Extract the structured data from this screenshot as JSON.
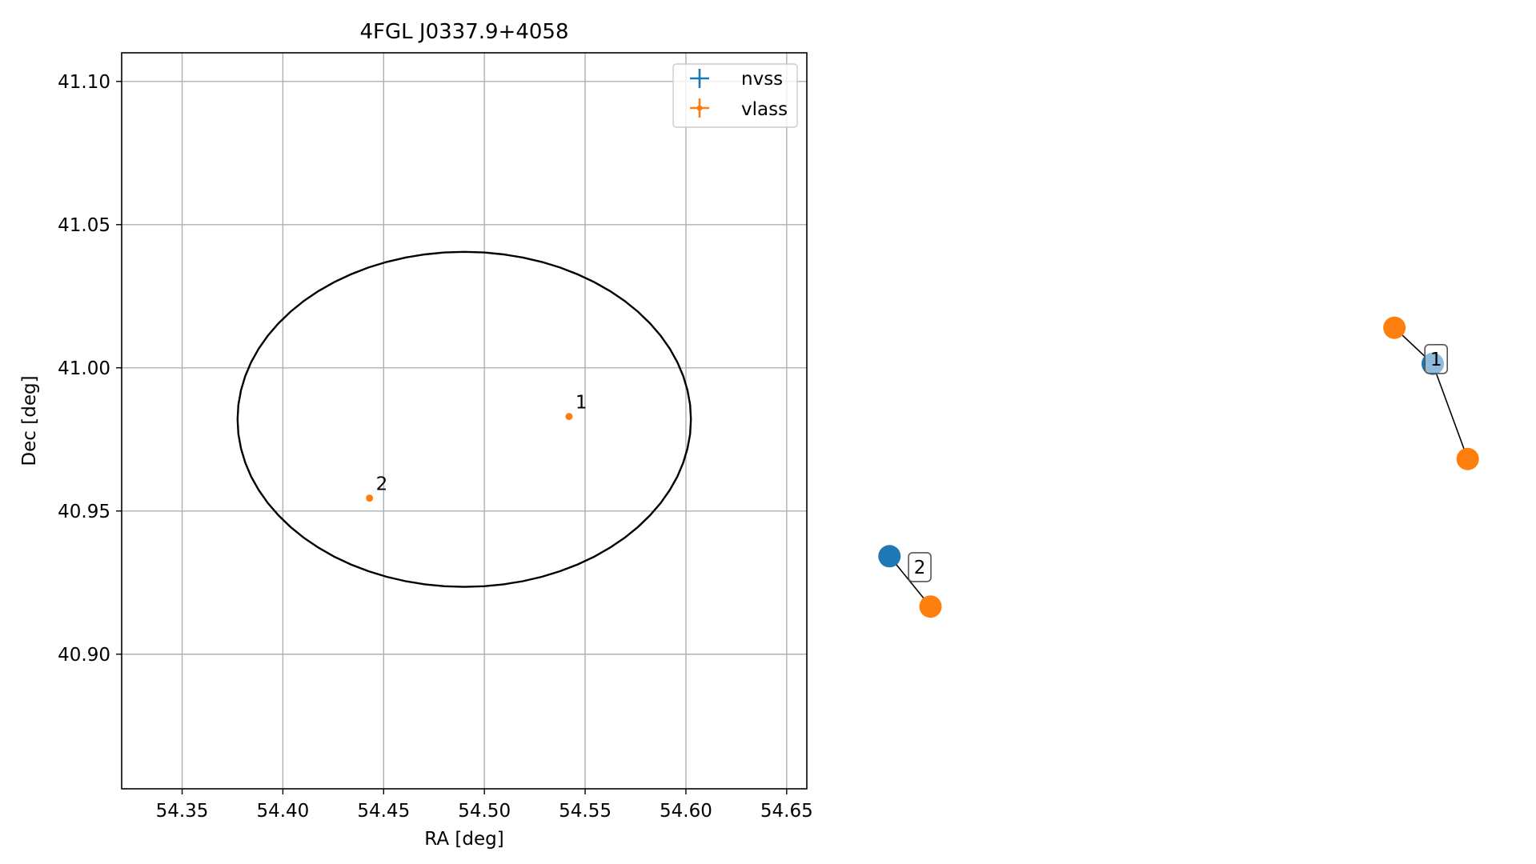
{
  "chart_data": [
    {
      "type": "scatter",
      "title": "4FGL J0337.9+4058",
      "xlabel": "RA [deg]",
      "ylabel": "Dec [deg]",
      "xlim": [
        54.32,
        54.66
      ],
      "ylim": [
        40.853,
        41.11
      ],
      "xticks": [
        54.35,
        54.4,
        54.45,
        54.5,
        54.55,
        54.6,
        54.65
      ],
      "xtick_labels": [
        "54.35",
        "54.40",
        "54.45",
        "54.50",
        "54.55",
        "54.60",
        "54.65"
      ],
      "yticks": [
        40.9,
        40.95,
        41.0,
        41.05,
        41.1
      ],
      "ytick_labels": [
        "40.90",
        "40.95",
        "41.00",
        "41.05",
        "41.10"
      ],
      "grid": true,
      "legend_position": "top-right",
      "series": [
        {
          "name": "nvss",
          "color": "#1f77b4",
          "points": []
        },
        {
          "name": "vlass",
          "color": "#ff7f0e",
          "points": [
            {
              "x": 54.542,
              "y": 40.983,
              "label": "1"
            },
            {
              "x": 54.443,
              "y": 40.9545,
              "label": "2"
            }
          ]
        }
      ],
      "ellipse": {
        "center": [
          54.49,
          40.982
        ],
        "semi_axis_ra": 0.1125,
        "semi_axis_dec": 0.0585,
        "color": "#000000"
      }
    },
    {
      "type": "scatter",
      "description": "source association graph",
      "groups": [
        {
          "label": "1",
          "hub": {
            "series": "nvss",
            "x": 0.875,
            "y": 0.665
          },
          "members": [
            {
              "series": "vlass",
              "x": 0.818,
              "y": 0.718
            },
            {
              "series": "vlass",
              "x": 0.927,
              "y": 0.525
            }
          ],
          "label_pos": {
            "x": 0.88,
            "y": 0.672
          }
        },
        {
          "label": "2",
          "hub": {
            "series": "nvss",
            "x": 0.067,
            "y": 0.382
          },
          "members": [
            {
              "series": "vlass",
              "x": 0.128,
              "y": 0.308
            }
          ],
          "label_pos": {
            "x": 0.112,
            "y": 0.366
          }
        }
      ],
      "colors": {
        "nvss": "#1f77b4",
        "vlass": "#ff7f0e"
      }
    }
  ]
}
